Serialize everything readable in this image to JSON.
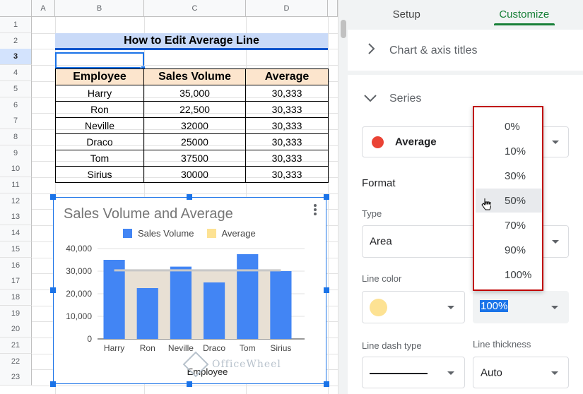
{
  "sheet": {
    "column_headers": [
      "A",
      "B",
      "C",
      "D"
    ],
    "row_headers": [
      "1",
      "2",
      "3",
      "4",
      "5",
      "6",
      "7",
      "8",
      "9",
      "10",
      "11",
      "12",
      "13",
      "14",
      "15",
      "16",
      "17",
      "18",
      "19",
      "20",
      "21",
      "22",
      "23"
    ],
    "selected_row": "3",
    "title": "How to Edit Average Line",
    "table": {
      "headers": [
        "Employee",
        "Sales Volume",
        "Average"
      ],
      "rows": [
        [
          "Harry",
          "35,000",
          "30,333"
        ],
        [
          "Ron",
          "22,500",
          "30,333"
        ],
        [
          "Neville",
          "32000",
          "30,333"
        ],
        [
          "Draco",
          "25000",
          "30,333"
        ],
        [
          "Tom",
          "37500",
          "30,333"
        ],
        [
          "Sirius",
          "30000",
          "30,333"
        ]
      ]
    }
  },
  "chart_data": {
    "type": "bar",
    "title": "Sales Volume and Average",
    "xlabel": "Employee",
    "ylabel": "",
    "categories": [
      "Harry",
      "Ron",
      "Neville",
      "Draco",
      "Tom",
      "Sirius"
    ],
    "series": [
      {
        "name": "Sales Volume",
        "type": "bar",
        "color": "#4285f4",
        "values": [
          35000,
          22500,
          32000,
          25000,
          37500,
          30000
        ]
      },
      {
        "name": "Average",
        "type": "area",
        "color": "#e8e0d4",
        "line_color": "#c8c8c8",
        "values": [
          30333,
          30333,
          30333,
          30333,
          30333,
          30333
        ]
      }
    ],
    "legend_swatch_colors": {
      "Sales Volume": "#4285f4",
      "Average": "#fde293"
    },
    "yticks": [
      "0",
      "10,000",
      "20,000",
      "30,000",
      "40,000"
    ],
    "ytick_values": [
      0,
      10000,
      20000,
      30000,
      40000
    ],
    "ylim": [
      0,
      40000
    ],
    "legend_position": "top",
    "grid": true
  },
  "watermark": "OfficeWheel",
  "panel": {
    "tabs": [
      "Setup",
      "Customize"
    ],
    "active_tab": "Customize",
    "chart_axis_titles": "Chart & axis titles",
    "series_title": "Series",
    "series_selected": "Average",
    "series_dot_color": "#ea4335",
    "format_title": "Format",
    "type_label": "Type",
    "type_value": "Area",
    "line_color_label": "Line color",
    "line_color_swatch": "#fde293",
    "opacity_value": "100%",
    "line_dash_label": "Line dash type",
    "line_thickness_label": "Line thickness",
    "line_thickness_value": "Auto",
    "opacity_options": [
      "0%",
      "10%",
      "30%",
      "50%",
      "70%",
      "90%",
      "100%"
    ],
    "hovered_option": "50%"
  }
}
